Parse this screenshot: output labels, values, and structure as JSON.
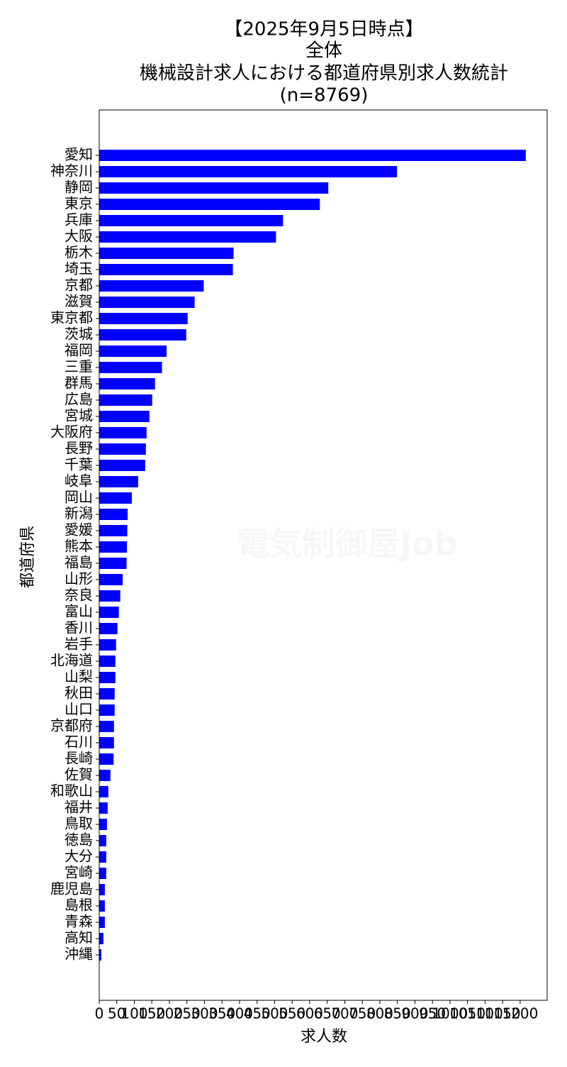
{
  "chart_data": {
    "type": "barh",
    "title": [
      "【2025年9月5日時点】",
      "全体",
      "機械設計求人における都道府県別求人数統計",
      "(n=8769)"
    ],
    "xlabel": "求人数",
    "ylabel": "都道府県",
    "watermark": "電気制御屋Job",
    "color": "#0000ff",
    "categories": [
      "愛知",
      "神奈川",
      "静岡",
      "東京",
      "兵庫",
      "大阪",
      "栃木",
      "埼玉",
      "京都",
      "滋賀",
      "東京都",
      "茨城",
      "福岡",
      "三重",
      "群馬",
      "広島",
      "宮城",
      "大阪府",
      "長野",
      "千葉",
      "岐阜",
      "岡山",
      "新潟",
      "愛媛",
      "熊本",
      "福島",
      "山形",
      "奈良",
      "富山",
      "香川",
      "岩手",
      "北海道",
      "山梨",
      "秋田",
      "山口",
      "京都府",
      "石川",
      "長崎",
      "佐賀",
      "和歌山",
      "福井",
      "鳥取",
      "徳島",
      "大分",
      "宮崎",
      "鹿児島",
      "島根",
      "青森",
      "高知",
      "沖縄"
    ],
    "values": [
      1216,
      849,
      653,
      629,
      524,
      504,
      383,
      381,
      298,
      272,
      252,
      248,
      192,
      179,
      159,
      151,
      143,
      135,
      133,
      131,
      111,
      93,
      81,
      80,
      79,
      78,
      67,
      60,
      56,
      52,
      48,
      46,
      46,
      44,
      44,
      42,
      42,
      41,
      32,
      26,
      24,
      22,
      20,
      20,
      20,
      16,
      16,
      16,
      12,
      6
    ],
    "xlim": [
      0,
      1277
    ],
    "xticks": [
      0,
      50,
      100,
      150,
      200,
      250,
      300,
      350,
      400,
      450,
      500,
      550,
      600,
      650,
      700,
      750,
      800,
      850,
      900,
      950,
      1000,
      1050,
      1100,
      1150,
      1200
    ]
  }
}
